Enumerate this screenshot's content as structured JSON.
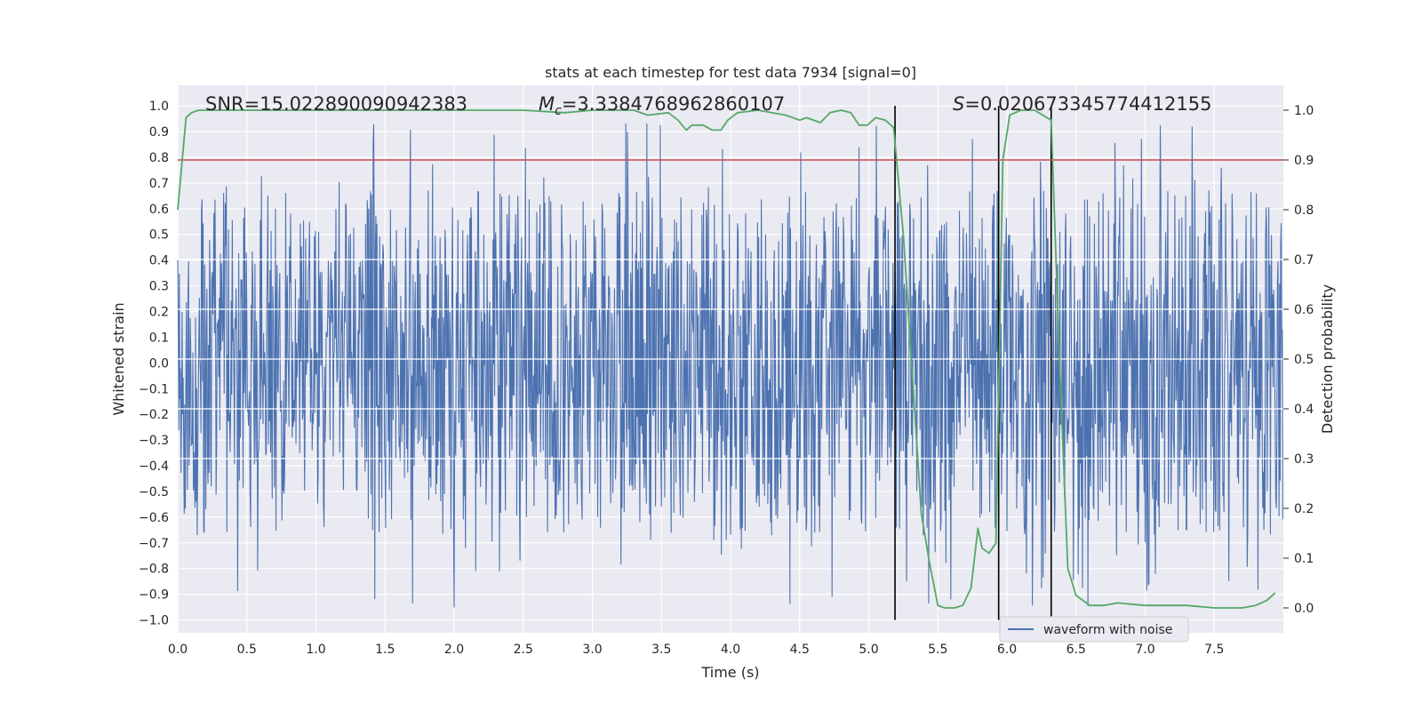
{
  "chart_data": {
    "type": "line",
    "title": "stats at each timestep for test data 7934 [signal=0]",
    "xlabel": "Time (s)",
    "ylabel": "Whitened strain",
    "ylabel_right": "Detection probability",
    "xlim": [
      0.0,
      8.0
    ],
    "ylim": [
      -1.05,
      1.08
    ],
    "ylim_right": [
      -0.05,
      1.05
    ],
    "x_ticks": [
      0.0,
      0.5,
      1.0,
      1.5,
      2.0,
      2.5,
      3.0,
      3.5,
      4.0,
      4.5,
      5.0,
      5.5,
      6.0,
      6.5,
      7.0,
      7.5
    ],
    "x_tick_labels": [
      "0.0",
      "0.5",
      "1.0",
      "1.5",
      "2.0",
      "2.5",
      "3.0",
      "3.5",
      "4.0",
      "4.5",
      "5.0",
      "5.5",
      "6.0",
      "6.5",
      "7.0",
      "7.5"
    ],
    "y_ticks": [
      1.0,
      0.9,
      0.8,
      0.7,
      0.6,
      0.5,
      0.4,
      0.3,
      0.2,
      0.1,
      0.0,
      -0.1,
      -0.2,
      -0.3,
      -0.4,
      -0.5,
      -0.6,
      -0.7,
      -0.8,
      -0.9,
      -1.0
    ],
    "y_tick_labels": [
      "1.0",
      "0.9",
      "0.8",
      "0.7",
      "0.6",
      "0.5",
      "0.4",
      "0.3",
      "0.2",
      "0.1",
      "0.0",
      "−0.1",
      "−0.2",
      "−0.3",
      "−0.4",
      "−0.5",
      "−0.6",
      "−0.7",
      "−0.8",
      "−0.9",
      "−1.0"
    ],
    "y_right_ticks": [
      1.0,
      0.9,
      0.8,
      0.7,
      0.6,
      0.5,
      0.4,
      0.3,
      0.2,
      0.1,
      0.0
    ],
    "y_right_tick_labels": [
      "1.0",
      "0.9",
      "0.8",
      "0.7",
      "0.6",
      "0.5",
      "0.4",
      "0.3",
      "0.2",
      "0.1",
      "0.0"
    ],
    "annotations": {
      "snr": "SNR=15.022890090942383",
      "mc_symbol": "M",
      "mc_sub": "c",
      "mc_value": "=3.3384768962860107",
      "s_symbol": "S",
      "s_value": "=0.020673345774412155"
    },
    "threshold": {
      "value": 0.9,
      "axis": "right",
      "color": "#c44e52"
    },
    "vertical_markers": {
      "x": [
        5.19,
        5.94,
        6.32
      ],
      "ymin": -1.0,
      "ymax": 1.0,
      "color": "#000000"
    },
    "legend": {
      "label": "waveform with noise",
      "placement": "lower-right"
    },
    "series": [
      {
        "name": "waveform with noise",
        "axis": "left",
        "color": "#4c72b0",
        "style": "dense-noise",
        "sample_rate_hz": 256,
        "duration_s": 8.0,
        "core_amplitude": 0.4,
        "peak_amplitude": 0.95
      },
      {
        "name": "Detection probability",
        "axis": "right",
        "color": "#55a868",
        "x": [
          0.0,
          0.06,
          0.1,
          0.15,
          0.2,
          0.5,
          1.0,
          1.5,
          2.0,
          2.5,
          2.8,
          3.0,
          3.3,
          3.4,
          3.55,
          3.62,
          3.68,
          3.72,
          3.8,
          3.87,
          3.93,
          3.98,
          4.05,
          4.2,
          4.4,
          4.5,
          4.55,
          4.65,
          4.72,
          4.8,
          4.87,
          4.93,
          4.99,
          5.05,
          5.12,
          5.18,
          5.25,
          5.32,
          5.38,
          5.44,
          5.5,
          5.55,
          5.62,
          5.68,
          5.74,
          5.79,
          5.82,
          5.87,
          5.92,
          5.97,
          6.02,
          6.1,
          6.2,
          6.26,
          6.32,
          6.38,
          6.44,
          6.5,
          6.6,
          6.7,
          6.8,
          7.0,
          7.3,
          7.5,
          7.7,
          7.8,
          7.88,
          7.94
        ],
        "values": [
          0.8,
          0.985,
          0.995,
          1.0,
          1.0,
          1.0,
          1.0,
          1.0,
          1.0,
          1.0,
          0.995,
          1.0,
          1.0,
          0.99,
          0.995,
          0.98,
          0.96,
          0.97,
          0.97,
          0.96,
          0.96,
          0.98,
          0.995,
          1.0,
          0.99,
          0.98,
          0.985,
          0.975,
          0.995,
          1.0,
          0.995,
          0.97,
          0.97,
          0.985,
          0.98,
          0.965,
          0.75,
          0.45,
          0.19,
          0.09,
          0.005,
          0.0,
          0.0,
          0.005,
          0.04,
          0.16,
          0.12,
          0.11,
          0.13,
          0.9,
          0.99,
          1.0,
          1.0,
          0.99,
          0.98,
          0.5,
          0.08,
          0.025,
          0.005,
          0.005,
          0.01,
          0.005,
          0.005,
          0.0,
          0.0,
          0.005,
          0.015,
          0.03
        ]
      }
    ]
  }
}
